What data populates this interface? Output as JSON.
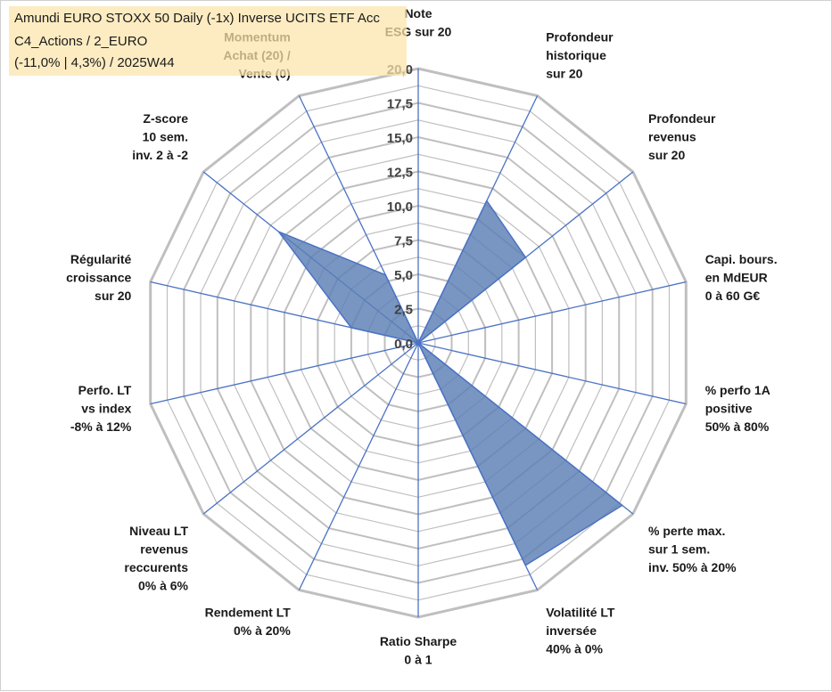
{
  "title_box": {
    "line1": "Amundi EURO STOXX 50 Daily (-1x) Inverse UCITS ETF Acc",
    "line2": "C4_Actions / 2_EURO",
    "line3": "(-11,0% | 4,3%) / 2025W44"
  },
  "chart_data": {
    "type": "radar",
    "title": "",
    "range": [
      0,
      20
    ],
    "grid": true,
    "tick_labels": [
      "0,0",
      "2,5",
      "5,0",
      "7,5",
      "10,0",
      "12,5",
      "15,0",
      "17,5",
      "20,0"
    ],
    "axes": [
      [
        "Note",
        "ESG sur 20"
      ],
      [
        "Profondeur",
        "historique",
        "sur 20"
      ],
      [
        "Profondeur",
        "revenus",
        "sur 20"
      ],
      [
        "Capi. bours.",
        "en MdEUR",
        "0 à 60 G€"
      ],
      [
        "% perfo 1A",
        "positive",
        "50% à 80%"
      ],
      [
        "% perte max.",
        "sur 1 sem.",
        "inv. 50% à 20%"
      ],
      [
        "Volatilité LT",
        "inversée",
        "40% à 0%"
      ],
      [
        "Ratio Sharpe",
        "0 à 1"
      ],
      [
        "Rendement LT",
        "0% à 20%"
      ],
      [
        "Niveau LT",
        "revenus",
        "reccurents",
        "0% à 6%"
      ],
      [
        "Perfo. LT",
        "vs index",
        "-8% à 12%"
      ],
      [
        "Régularité",
        "croissance",
        "sur 20"
      ],
      [
        "Z-score",
        "10 sem.",
        "inv. 2 à -2"
      ],
      [
        "Momentum",
        "Achat (20) /",
        "Vente (0)"
      ]
    ],
    "series": [
      {
        "values": [
          0,
          11.5,
          10.0,
          0,
          0,
          19.0,
          18.0,
          0,
          0,
          0,
          0,
          5.0,
          13.0,
          5.5
        ]
      }
    ],
    "colors": {
      "fill": "#5b7fb5",
      "stroke": "#4a72c4",
      "grid": "#bfbfbf",
      "axis": "#4a72c4"
    }
  }
}
